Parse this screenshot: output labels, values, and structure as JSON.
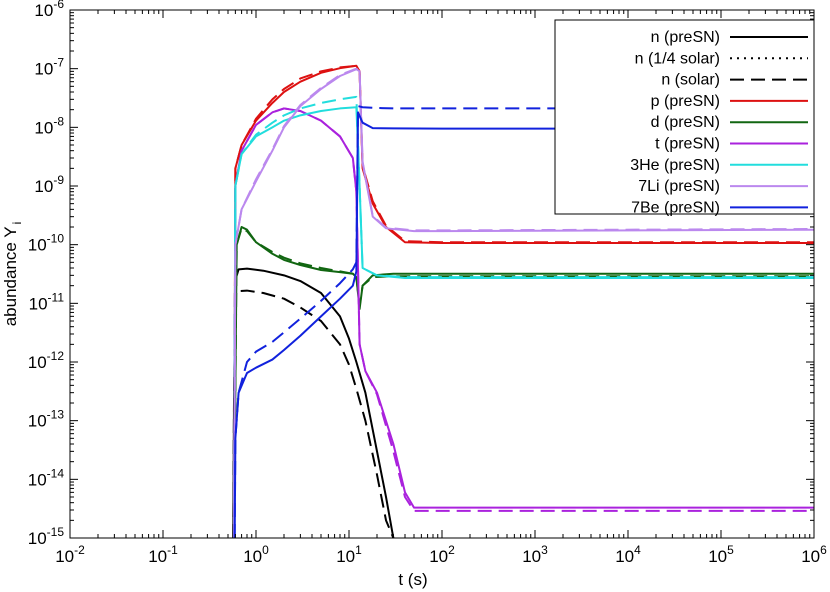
{
  "chart_data": {
    "type": "line",
    "xlabel": "t (s)",
    "ylabel": "abundance Y",
    "ylabel_sub": "i",
    "x_scale": "log",
    "y_scale": "log",
    "xlim": [
      0.01,
      1000000
    ],
    "ylim": [
      1e-15,
      1e-06
    ],
    "grid": false,
    "legend_position": "top-right",
    "x_ticks": [
      {
        "base": "10",
        "exp": "-2",
        "value": 0.01
      },
      {
        "base": "10",
        "exp": "-1",
        "value": 0.1
      },
      {
        "base": "10",
        "exp": "0",
        "value": 1
      },
      {
        "base": "10",
        "exp": "1",
        "value": 10
      },
      {
        "base": "10",
        "exp": "2",
        "value": 100
      },
      {
        "base": "10",
        "exp": "3",
        "value": 1000
      },
      {
        "base": "10",
        "exp": "4",
        "value": 10000
      },
      {
        "base": "10",
        "exp": "5",
        "value": 100000
      },
      {
        "base": "10",
        "exp": "6",
        "value": 1000000
      }
    ],
    "y_ticks": [
      {
        "base": "10",
        "exp": "-15",
        "value": 1e-15
      },
      {
        "base": "10",
        "exp": "-14",
        "value": 1e-14
      },
      {
        "base": "10",
        "exp": "-13",
        "value": 1e-13
      },
      {
        "base": "10",
        "exp": "-12",
        "value": 1e-12
      },
      {
        "base": "10",
        "exp": "-11",
        "value": 1e-11
      },
      {
        "base": "10",
        "exp": "-10",
        "value": 1e-10
      },
      {
        "base": "10",
        "exp": "-9",
        "value": 1e-09
      },
      {
        "base": "10",
        "exp": "-8",
        "value": 1e-08
      },
      {
        "base": "10",
        "exp": "-7",
        "value": 1e-07
      },
      {
        "base": "10",
        "exp": "-6",
        "value": 1e-06
      }
    ],
    "legend": [
      {
        "label": "n (preSN)",
        "color": "#000000",
        "dash": "solid"
      },
      {
        "label": "n (1/4 solar)",
        "color": "#000000",
        "dash": "dotted"
      },
      {
        "label": "n (solar)",
        "color": "#000000",
        "dash": "dashed"
      },
      {
        "label": "p (preSN)",
        "color": "#dd1111",
        "dash": "solid"
      },
      {
        "label": "d (preSN)",
        "color": "#116611",
        "dash": "solid"
      },
      {
        "label": "t (preSN)",
        "color": "#aa22dd",
        "dash": "solid"
      },
      {
        "label": "3He (preSN)",
        "color": "#22dddd",
        "dash": "solid"
      },
      {
        "label": "7Li (preSN)",
        "color": "#bb88ee",
        "dash": "solid"
      },
      {
        "label": "7Be (preSN)",
        "color": "#1122dd",
        "dash": "solid"
      }
    ],
    "series": [
      {
        "color": "#000000",
        "dash": "solid",
        "points": [
          [
            0.57,
            1e-15
          ],
          [
            0.58,
            2e-13
          ],
          [
            0.6,
            2.5e-11
          ],
          [
            0.65,
            3.8e-11
          ],
          [
            0.8,
            3.9e-11
          ],
          [
            1.2,
            3.6e-11
          ],
          [
            2,
            3e-11
          ],
          [
            3,
            2.4e-11
          ],
          [
            5,
            1.5e-11
          ],
          [
            8,
            6e-12
          ],
          [
            10,
            2.5e-12
          ],
          [
            12,
            1e-12
          ],
          [
            15,
            3e-13
          ],
          [
            20,
            3e-14
          ],
          [
            25,
            5e-15
          ],
          [
            30,
            1e-15
          ]
        ]
      },
      {
        "color": "#000000",
        "dash": "dashed",
        "points": [
          [
            0.57,
            1e-15
          ],
          [
            0.58,
            2e-13
          ],
          [
            0.6,
            1.6e-11
          ],
          [
            0.8,
            1.65e-11
          ],
          [
            1.2,
            1.5e-11
          ],
          [
            2,
            1.2e-11
          ],
          [
            3,
            8.5e-12
          ],
          [
            5,
            5e-12
          ],
          [
            8,
            2e-12
          ],
          [
            10,
            9e-13
          ],
          [
            12,
            3.5e-13
          ],
          [
            15,
            1e-13
          ],
          [
            20,
            1.2e-14
          ],
          [
            25,
            2e-15
          ],
          [
            30,
            1e-15
          ]
        ]
      },
      {
        "color": "#dd1111",
        "dash": "solid",
        "points": [
          [
            0.58,
            1e-15
          ],
          [
            0.6,
            2e-09
          ],
          [
            0.7,
            5e-09
          ],
          [
            1,
            1.3e-08
          ],
          [
            1.5,
            2.6e-08
          ],
          [
            2,
            4e-08
          ],
          [
            3,
            6e-08
          ],
          [
            5,
            8.5e-08
          ],
          [
            8,
            1.02e-07
          ],
          [
            12,
            1.12e-07
          ],
          [
            13,
            9e-08
          ],
          [
            14,
            2e-09
          ],
          [
            18,
            5e-10
          ],
          [
            25,
            2e-10
          ],
          [
            40,
            1.1e-10
          ],
          [
            100,
            1.07e-10
          ],
          [
            1000000,
            1.07e-10
          ]
        ]
      },
      {
        "color": "#dd1111",
        "dash": "dashed",
        "points": [
          [
            0.58,
            1e-15
          ],
          [
            0.6,
            2e-09
          ],
          [
            0.7,
            5e-09
          ],
          [
            1,
            1.4e-08
          ],
          [
            1.5,
            3e-08
          ],
          [
            2,
            4.5e-08
          ],
          [
            3,
            6.8e-08
          ],
          [
            5,
            9e-08
          ],
          [
            8,
            1.05e-07
          ],
          [
            12,
            1.12e-07
          ],
          [
            13,
            9e-08
          ],
          [
            14,
            2.2e-09
          ],
          [
            18,
            5.5e-10
          ],
          [
            25,
            2.1e-10
          ],
          [
            40,
            1.15e-10
          ],
          [
            100,
            1.1e-10
          ],
          [
            1000000,
            1.1e-10
          ]
        ]
      },
      {
        "color": "#116611",
        "dash": "solid",
        "points": [
          [
            0.58,
            1e-15
          ],
          [
            0.62,
            1e-10
          ],
          [
            0.7,
            2e-10
          ],
          [
            0.8,
            1.8e-10
          ],
          [
            1,
            1.1e-10
          ],
          [
            1.5,
            7e-11
          ],
          [
            2,
            5.5e-11
          ],
          [
            3,
            4.5e-11
          ],
          [
            5,
            3.7e-11
          ],
          [
            8,
            3.4e-11
          ],
          [
            11,
            3.2e-11
          ],
          [
            12,
            2.8e-11
          ],
          [
            13,
            8e-12
          ],
          [
            14,
            2e-11
          ],
          [
            18,
            3e-11
          ],
          [
            30,
            3.2e-11
          ],
          [
            100,
            3.2e-11
          ],
          [
            1000000,
            3.2e-11
          ]
        ]
      },
      {
        "color": "#116611",
        "dash": "dashed",
        "points": [
          [
            0.58,
            1e-15
          ],
          [
            0.62,
            1e-10
          ],
          [
            0.7,
            1.9e-10
          ],
          [
            0.8,
            1.7e-10
          ],
          [
            1,
            1.1e-10
          ],
          [
            1.5,
            7.5e-11
          ],
          [
            2,
            6e-11
          ],
          [
            3,
            4.8e-11
          ],
          [
            5,
            4e-11
          ],
          [
            8,
            3.5e-11
          ],
          [
            11,
            3.2e-11
          ],
          [
            12,
            2.8e-11
          ],
          [
            13,
            9e-12
          ],
          [
            14,
            2e-11
          ],
          [
            18,
            2.8e-11
          ],
          [
            30,
            2.9e-11
          ],
          [
            100,
            2.9e-11
          ],
          [
            1000000,
            2.9e-11
          ]
        ]
      },
      {
        "color": "#aa22dd",
        "dash": "solid",
        "points": [
          [
            0.58,
            1e-15
          ],
          [
            0.6,
            1e-09
          ],
          [
            0.7,
            4e-09
          ],
          [
            1,
            1.1e-08
          ],
          [
            1.5,
            1.8e-08
          ],
          [
            2,
            2.1e-08
          ],
          [
            3,
            1.9e-08
          ],
          [
            5,
            1.3e-08
          ],
          [
            8,
            7e-09
          ],
          [
            11,
            3e-09
          ],
          [
            12,
            8e-10
          ],
          [
            13,
            2e-12
          ],
          [
            15,
            7e-13
          ],
          [
            20,
            3e-13
          ],
          [
            30,
            4e-14
          ],
          [
            40,
            6e-15
          ],
          [
            50,
            3.3e-15
          ],
          [
            100,
            3.3e-15
          ],
          [
            1000000,
            3.3e-15
          ]
        ]
      },
      {
        "color": "#aa22dd",
        "dash": "dashed",
        "points": [
          [
            0.58,
            1e-15
          ],
          [
            0.6,
            1e-09
          ],
          [
            0.7,
            4e-09
          ],
          [
            1,
            1.1e-08
          ],
          [
            1.5,
            1.8e-08
          ],
          [
            2,
            2.1e-08
          ],
          [
            3,
            1.9e-08
          ],
          [
            5,
            1.3e-08
          ],
          [
            8,
            7e-09
          ],
          [
            11,
            3e-09
          ],
          [
            12,
            8e-10
          ],
          [
            13,
            2e-12
          ],
          [
            15,
            7e-13
          ],
          [
            20,
            2.8e-13
          ],
          [
            30,
            3e-14
          ],
          [
            40,
            5e-15
          ],
          [
            50,
            2.9e-15
          ],
          [
            100,
            2.9e-15
          ],
          [
            1000000,
            2.9e-15
          ]
        ]
      },
      {
        "color": "#22dddd",
        "dash": "solid",
        "points": [
          [
            0.58,
            1e-15
          ],
          [
            0.6,
            1e-09
          ],
          [
            0.7,
            3.5e-09
          ],
          [
            1,
            7e-09
          ],
          [
            1.5,
            1e-08
          ],
          [
            2,
            1.3e-08
          ],
          [
            3,
            1.6e-08
          ],
          [
            5,
            1.9e-08
          ],
          [
            8,
            2.1e-08
          ],
          [
            12,
            2.2e-08
          ],
          [
            13,
            1e-09
          ],
          [
            14,
            4e-11
          ],
          [
            20,
            3e-11
          ],
          [
            40,
            2.7e-11
          ],
          [
            100,
            2.7e-11
          ],
          [
            1000000,
            2.7e-11
          ]
        ]
      },
      {
        "color": "#22dddd",
        "dash": "dashed",
        "points": [
          [
            0.58,
            1e-15
          ],
          [
            0.6,
            1e-09
          ],
          [
            0.7,
            3.5e-09
          ],
          [
            1,
            7.5e-09
          ],
          [
            1.5,
            1.2e-08
          ],
          [
            2,
            1.6e-08
          ],
          [
            3,
            2.1e-08
          ],
          [
            5,
            2.6e-08
          ],
          [
            8,
            3e-08
          ],
          [
            12,
            3.3e-08
          ],
          [
            13,
            1e-09
          ],
          [
            14,
            4e-11
          ],
          [
            20,
            3e-11
          ],
          [
            40,
            2.8e-11
          ],
          [
            100,
            2.8e-11
          ],
          [
            1000000,
            2.8e-11
          ]
        ]
      },
      {
        "color": "#bb88ee",
        "dash": "solid",
        "points": [
          [
            0.58,
            1e-15
          ],
          [
            0.6,
            1e-10
          ],
          [
            0.7,
            4e-10
          ],
          [
            1,
            1.2e-09
          ],
          [
            1.5,
            4e-09
          ],
          [
            2,
            1e-08
          ],
          [
            3,
            2.3e-08
          ],
          [
            5,
            4.5e-08
          ],
          [
            8,
            7.5e-08
          ],
          [
            12,
            9.8e-08
          ],
          [
            13,
            9e-08
          ],
          [
            14,
            2.5e-09
          ],
          [
            18,
            3e-10
          ],
          [
            25,
            1.9e-10
          ],
          [
            50,
            1.7e-10
          ],
          [
            100,
            1.7e-10
          ],
          [
            1000000,
            1.8e-10
          ]
        ]
      },
      {
        "color": "#bb88ee",
        "dash": "dashed",
        "points": [
          [
            0.58,
            1e-15
          ],
          [
            0.6,
            1e-10
          ],
          [
            0.7,
            4e-10
          ],
          [
            1,
            1.3e-09
          ],
          [
            1.5,
            4.2e-09
          ],
          [
            2,
            1.05e-08
          ],
          [
            3,
            2.4e-08
          ],
          [
            5,
            4.7e-08
          ],
          [
            8,
            7.8e-08
          ],
          [
            12,
            1e-07
          ],
          [
            13,
            9.2e-08
          ],
          [
            14,
            2.6e-09
          ],
          [
            18,
            3.1e-10
          ],
          [
            25,
            1.95e-10
          ],
          [
            50,
            1.75e-10
          ],
          [
            100,
            1.75e-10
          ],
          [
            1000000,
            1.85e-10
          ]
        ]
      },
      {
        "color": "#1122dd",
        "dash": "solid",
        "points": [
          [
            0.59,
            1e-15
          ],
          [
            0.6,
            5e-14
          ],
          [
            0.65,
            3e-13
          ],
          [
            0.8,
            6.5e-13
          ],
          [
            1,
            8e-13
          ],
          [
            1.5,
            1.1e-12
          ],
          [
            2,
            1.6e-12
          ],
          [
            3,
            2.8e-12
          ],
          [
            5,
            6e-12
          ],
          [
            8,
            1.2e-11
          ],
          [
            11,
            2e-11
          ],
          [
            12,
            3.5e-11
          ],
          [
            12.5,
            1.8e-08
          ],
          [
            14,
            1.2e-08
          ],
          [
            18,
            9.7e-09
          ],
          [
            30,
            9.6e-09
          ],
          [
            100,
            9.5e-09
          ],
          [
            1000000,
            9.5e-09
          ]
        ]
      },
      {
        "color": "#1122dd",
        "dash": "dashed",
        "points": [
          [
            0.59,
            1e-15
          ],
          [
            0.6,
            5e-14
          ],
          [
            0.65,
            3e-13
          ],
          [
            0.8,
            1e-12
          ],
          [
            1,
            1.5e-12
          ],
          [
            1.5,
            2.2e-12
          ],
          [
            2,
            3.2e-12
          ],
          [
            3,
            5.5e-12
          ],
          [
            5,
            1.1e-11
          ],
          [
            8,
            2.2e-11
          ],
          [
            11,
            3.8e-11
          ],
          [
            12,
            5e-11
          ],
          [
            12.5,
            2.3e-08
          ],
          [
            14,
            2.2e-08
          ],
          [
            18,
            2.15e-08
          ],
          [
            30,
            2.1e-08
          ],
          [
            100,
            2.1e-08
          ],
          [
            1000000,
            2.1e-08
          ]
        ]
      }
    ]
  }
}
